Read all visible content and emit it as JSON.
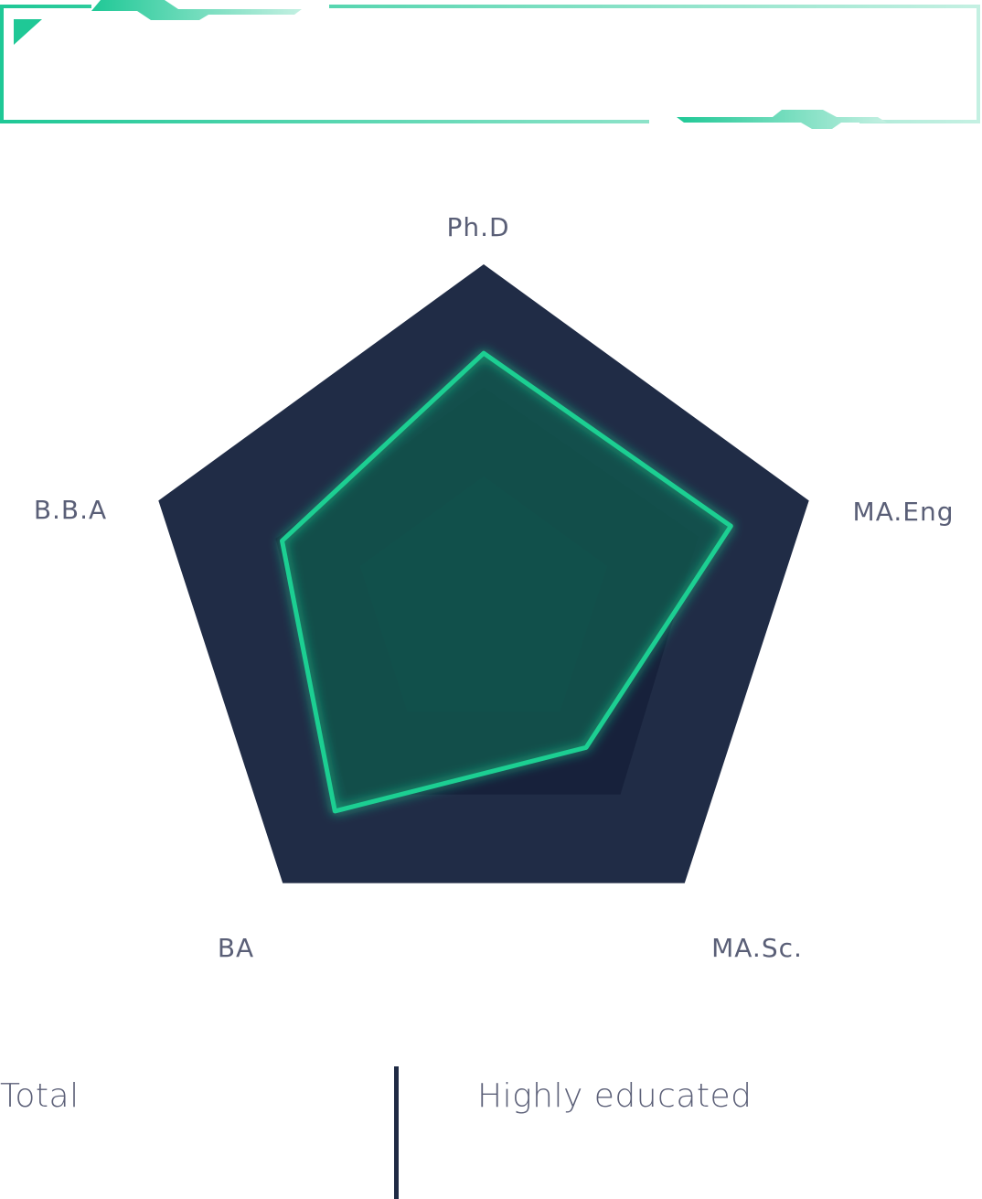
{
  "colors": {
    "outer_pentagon": "#202c46",
    "inner_pentagon": "#0e3b43",
    "series_stroke": "#1fcf92",
    "series_fill": "#12534c",
    "shadow": "#16203a",
    "axis_label": "#5a5f77",
    "legend_text": "#5c6078",
    "frame_start": "#1fc896",
    "frame_end": "#c4f0e2"
  },
  "chart_data": {
    "type": "radar",
    "axes": [
      "Ph.D",
      "MA.Eng",
      "MA.Sc.",
      "BA",
      "B.B.A"
    ],
    "max": 100,
    "rings": [
      100,
      38
    ],
    "series": [
      {
        "name": "Highly educated",
        "values": [
          74,
          76,
          51,
          74,
          62
        ]
      },
      {
        "name": "Total",
        "values": [
          64,
          66,
          68,
          68,
          64
        ]
      }
    ]
  },
  "legend": {
    "total_label": "Total",
    "highly_educated_label": "Highly educated"
  }
}
